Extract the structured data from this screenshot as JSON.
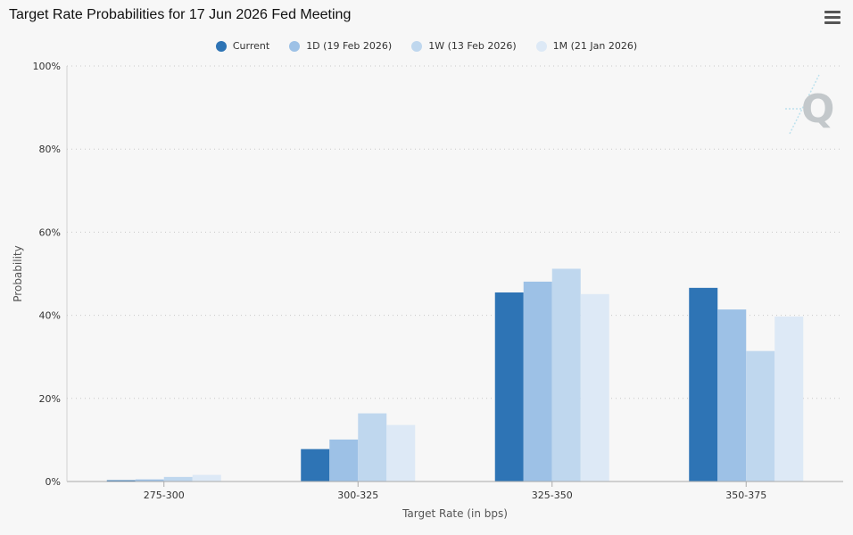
{
  "header": {
    "title": "Target Rate Probabilities for 17 Jun 2026 Fed Meeting"
  },
  "menu": {
    "icon": "hamburger-menu-icon"
  },
  "watermark": {
    "text": "Q",
    "icon": "quikstrike-logo-icon"
  },
  "legend": {
    "items": [
      {
        "label": "Current",
        "color": "#2e74b5"
      },
      {
        "label": "1D (19 Feb 2026)",
        "color": "#9dc1e6"
      },
      {
        "label": "1W (13 Feb 2026)",
        "color": "#bfd7ee"
      },
      {
        "label": "1M (21 Jan 2026)",
        "color": "#dde9f6"
      }
    ]
  },
  "chart_data": {
    "type": "bar",
    "title": "Target Rate Probabilities for 17 Jun 2026 Fed Meeting",
    "xlabel": "Target Rate (in bps)",
    "ylabel": "Probability",
    "categories": [
      "275-300",
      "300-325",
      "325-350",
      "350-375"
    ],
    "ylim": [
      0,
      100
    ],
    "yticks": [
      "0%",
      "20%",
      "40%",
      "60%",
      "80%",
      "100%"
    ],
    "ytick_values": [
      0,
      20,
      40,
      60,
      80,
      100
    ],
    "grid": true,
    "legend_position": "top-center",
    "series": [
      {
        "name": "Current",
        "color": "#2e74b5",
        "values": [
          0.3,
          7.8,
          45.5,
          46.6
        ]
      },
      {
        "name": "1D (19 Feb 2026)",
        "color": "#9dc1e6",
        "values": [
          0.5,
          10.1,
          48.1,
          41.4
        ]
      },
      {
        "name": "1W (13 Feb 2026)",
        "color": "#bfd7ee",
        "values": [
          1.1,
          16.4,
          51.2,
          31.4
        ]
      },
      {
        "name": "1M (21 Jan 2026)",
        "color": "#dde9f6",
        "values": [
          1.6,
          13.6,
          45.1,
          39.7
        ]
      }
    ]
  }
}
